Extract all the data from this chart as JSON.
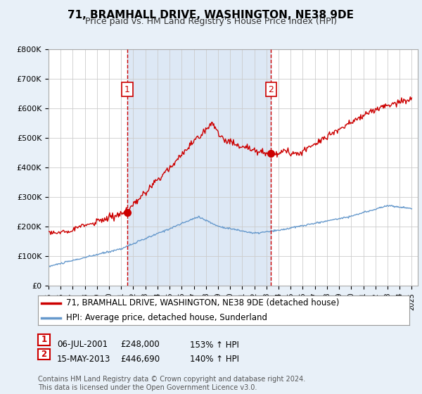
{
  "title": "71, BRAMHALL DRIVE, WASHINGTON, NE38 9DE",
  "subtitle": "Price paid vs. HM Land Registry's House Price Index (HPI)",
  "ylim": [
    0,
    800000
  ],
  "yticks": [
    0,
    100000,
    200000,
    300000,
    400000,
    500000,
    600000,
    700000,
    800000
  ],
  "ytick_labels": [
    "£0",
    "£100K",
    "£200K",
    "£300K",
    "£400K",
    "£500K",
    "£600K",
    "£700K",
    "£800K"
  ],
  "sale1": {
    "date_label": "06-JUL-2001",
    "price": 248000,
    "label": "1",
    "hpi_pct": "153% ↑ HPI",
    "year": 2001.5
  },
  "sale2": {
    "date_label": "15-MAY-2013",
    "price": 446690,
    "label": "2",
    "hpi_pct": "140% ↑ HPI",
    "year": 2013.37
  },
  "line1_color": "#cc0000",
  "line2_color": "#6699cc",
  "vline_color": "#cc0000",
  "shade_color": "#dde8f5",
  "legend1_label": "71, BRAMHALL DRIVE, WASHINGTON, NE38 9DE (detached house)",
  "legend2_label": "HPI: Average price, detached house, Sunderland",
  "table_row1": [
    "1",
    "06-JUL-2001",
    "£248,000",
    "153% ↑ HPI"
  ],
  "table_row2": [
    "2",
    "15-MAY-2013",
    "£446,690",
    "140% ↑ HPI"
  ],
  "footnote": "Contains HM Land Registry data © Crown copyright and database right 2024.\nThis data is licensed under the Open Government Licence v3.0.",
  "bg_color": "#e8f0f8",
  "plot_bg_color": "#ffffff",
  "title_fontsize": 11,
  "subtitle_fontsize": 9,
  "tick_fontsize": 8,
  "legend_fontsize": 8.5,
  "footnote_fontsize": 7
}
